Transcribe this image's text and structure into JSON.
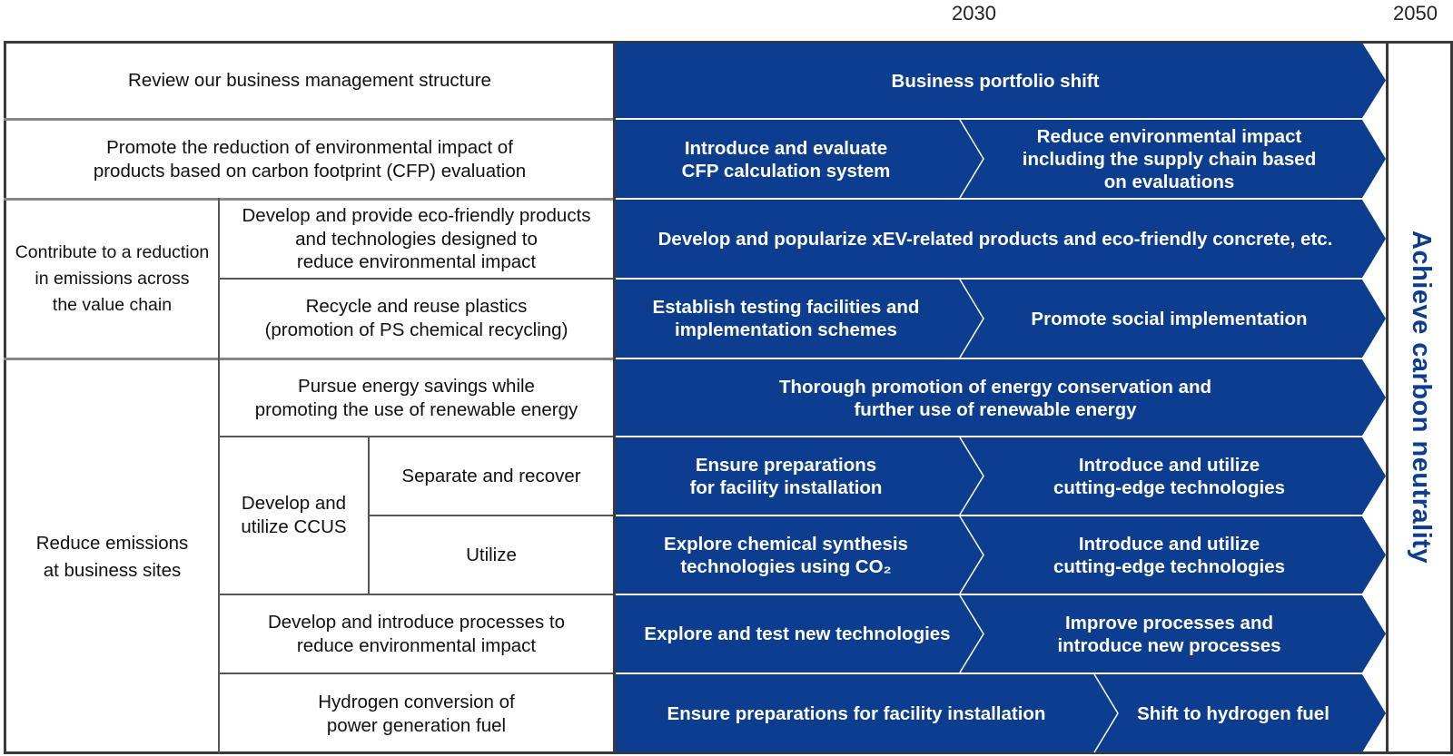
{
  "timeline": {
    "mid_year": "2030",
    "end_year": "2050"
  },
  "goal": "Achieve carbon neutrality",
  "colors": {
    "arrow_fill": "#0c3d8e",
    "goal_text": "#0c3d8e",
    "separator": "#ffffff"
  },
  "rows": {
    "r1_label": "Review our business management structure",
    "r2_label": "Promote the reduction of environmental impact of\nproducts based on carbon footprint (CFP) evaluation",
    "group_value_chain": "Contribute to a reduction\nin emissions across\nthe value chain",
    "r3_label": "Develop and provide eco-friendly products\nand technologies designed to\nreduce environmental impact",
    "r4_label": "Recycle and reuse plastics\n(promotion of PS chemical recycling)",
    "group_sites": "Reduce emissions\nat business sites",
    "r5_label": "Pursue energy savings while\npromoting the use of renewable energy",
    "ccus_label": "Develop and\nutilize CCUS",
    "r6_label": "Separate and recover",
    "r7_label": "Utilize",
    "r8_label": "Develop and introduce processes to\nreduce environmental impact",
    "r9_label": "Hydrogen conversion of\npower generation fuel"
  },
  "actions": {
    "r1": [
      "Business portfolio shift"
    ],
    "r2": [
      "Introduce and evaluate\nCFP calculation system",
      "Reduce environmental impact\nincluding the supply chain based\non evaluations"
    ],
    "r3": [
      "Develop and popularize xEV-related products and eco-friendly concrete, etc."
    ],
    "r4": [
      "Establish testing facilities and\nimplementation schemes",
      "Promote social implementation"
    ],
    "r5": [
      "Thorough promotion of energy conservation and\nfurther use of renewable energy"
    ],
    "r6": [
      "Ensure preparations\nfor facility installation",
      "Introduce and utilize\ncutting-edge technologies"
    ],
    "r7": [
      "Explore chemical synthesis\ntechnologies using CO₂",
      "Introduce and utilize\ncutting-edge technologies"
    ],
    "r8": [
      "Explore and test new technologies",
      "Improve processes and\nintroduce new processes"
    ],
    "r9": [
      "Ensure preparations for facility installation",
      "Shift to hydrogen fuel"
    ]
  }
}
